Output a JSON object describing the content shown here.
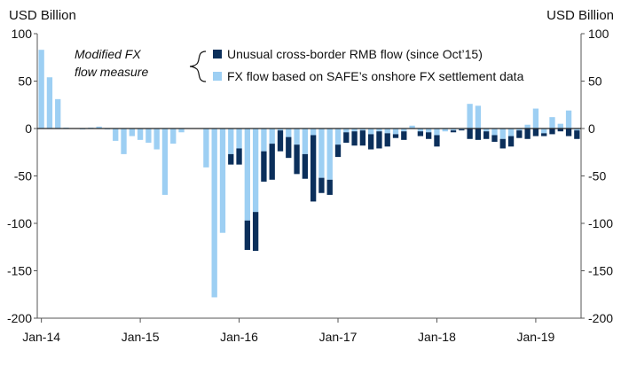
{
  "chart_data": {
    "type": "bar",
    "stacked": true,
    "left_axis_label": "USD Billion",
    "right_axis_label": "USD Billion",
    "ylim": [
      -200,
      100
    ],
    "yticks": [
      100,
      50,
      0,
      -50,
      -100,
      -150,
      -200
    ],
    "xtick_labels": [
      "Jan-14",
      "Jan-15",
      "Jan-16",
      "Jan-17",
      "Jan-18",
      "Jan-19"
    ],
    "xtick_month_index": [
      0,
      12,
      24,
      36,
      48,
      60
    ],
    "month_count": 66,
    "grid": false,
    "annotation": [
      "Modified FX",
      "flow measure"
    ],
    "colors": {
      "onshore": "#9dcff3",
      "unusual": "#0b2f5b",
      "axis": "#555555"
    },
    "series": [
      {
        "key": "onshore",
        "name": "FX flow based on SAFE’s onshore FX settlement data",
        "values": [
          83,
          54,
          31,
          1,
          0,
          -1,
          1,
          2,
          -1,
          -13,
          -27,
          -8,
          -12,
          -15,
          -22,
          -70,
          -16,
          -4,
          0,
          0,
          -41,
          -178,
          -110,
          -27,
          -21,
          -97,
          -88,
          -24,
          -16,
          -2,
          -9,
          -17,
          -27,
          -7,
          -52,
          -54,
          -17,
          -4,
          -3,
          -2,
          -6,
          -3,
          -5,
          -6,
          -3,
          3,
          -3,
          -4,
          -7,
          -3,
          -2,
          -1,
          26,
          24,
          -3,
          -7,
          -11,
          -8,
          -2,
          4,
          21,
          -5,
          12,
          5,
          19,
          -2
        ]
      },
      {
        "key": "unusual",
        "name": "Unusual cross-border RMB flow (since Oct’15)",
        "values": [
          0,
          0,
          0,
          0,
          0,
          0,
          0,
          0,
          0,
          0,
          0,
          0,
          0,
          0,
          0,
          0,
          0,
          0,
          0,
          0,
          0,
          0,
          0,
          -11,
          -17,
          -31,
          -41,
          -32,
          -38,
          -22,
          -22,
          -31,
          -26,
          -70,
          -16,
          -16,
          -13,
          -11,
          -15,
          -16,
          -16,
          -18,
          -14,
          -4,
          -9,
          0,
          -5,
          -7,
          -12,
          0,
          -2,
          -1,
          -11,
          -12,
          -8,
          -7,
          -10,
          -11,
          -8,
          -11,
          -8,
          -3,
          -6,
          -3,
          -8,
          -9
        ]
      }
    ]
  }
}
